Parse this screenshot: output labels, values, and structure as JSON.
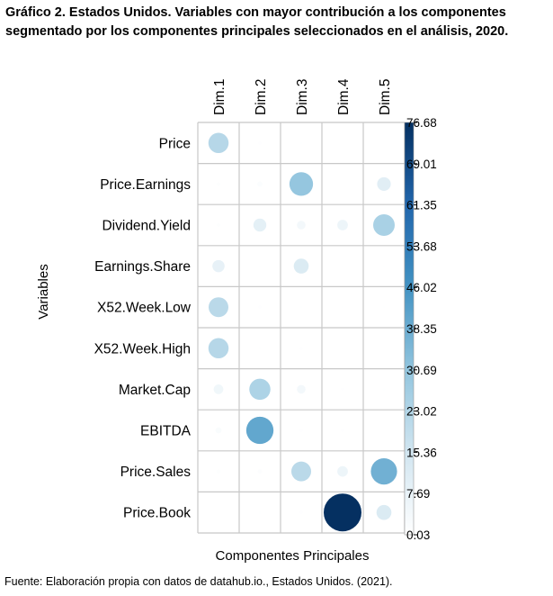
{
  "title_line1": "Gráfico 2. Estados Unidos. Variables con mayor contribución a los componentes",
  "title_line2": "segmentado por los componentes principales seleccionados en el análisis, 2020.",
  "source": "Fuente: Elaboración propia con datos de datahub.io., Estados Unidos. (2021).",
  "chart_data": {
    "type": "heatmap",
    "columns": [
      "Dim.1",
      "Dim.2",
      "Dim.3",
      "Dim.4",
      "Dim.5"
    ],
    "rows": [
      "Price",
      "Price.Earnings",
      "Dividend.Yield",
      "Earnings.Share",
      "X52.Week.Low",
      "X52.Week.High",
      "Market.Cap",
      "EBITDA",
      "Price.Sales",
      "Price.Book"
    ],
    "values": [
      [
        22,
        0.5,
        0.2,
        0.1,
        0.1
      ],
      [
        0.8,
        1.5,
        30,
        0.1,
        10
      ],
      [
        0.8,
        9,
        4,
        6,
        25
      ],
      [
        8,
        0.2,
        12,
        0.2,
        0.2
      ],
      [
        21,
        0.5,
        0.2,
        0.2,
        0.2
      ],
      [
        22,
        0.3,
        0.5,
        0.2,
        0.1
      ],
      [
        5,
        24,
        4,
        0.5,
        0.3
      ],
      [
        2,
        40,
        0.5,
        0.5,
        0.1
      ],
      [
        0.8,
        1,
        21,
        6,
        37
      ],
      [
        0.1,
        0.3,
        0.5,
        76.68,
        12
      ]
    ],
    "color_scale": {
      "min": 0.03,
      "max": 76.68,
      "ticks": [
        76.68,
        69.01,
        61.35,
        53.68,
        46.02,
        38.35,
        30.69,
        23.02,
        15.36,
        7.69,
        0.03
      ],
      "colors": [
        "#ffffff",
        "#d1e5f0",
        "#92c5de",
        "#4393c3",
        "#2166ac",
        "#053061"
      ]
    },
    "xlabel": "Componentes Principales",
    "ylabel": "Variables"
  }
}
